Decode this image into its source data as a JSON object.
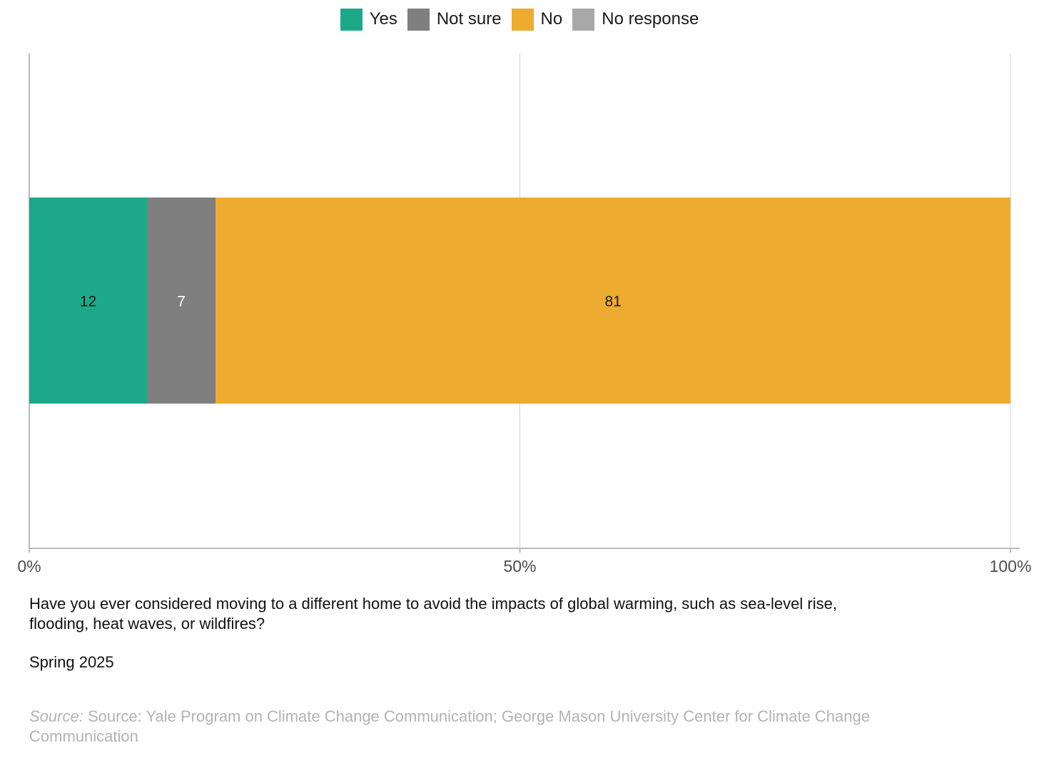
{
  "colors": {
    "yes": "#1ba98a",
    "not_sure": "#7f7f7f",
    "no": "#edab2f",
    "no_response": "#a8a8a8",
    "grid": "#d4d4d4",
    "axis": "#bbbbbb",
    "source_text": "#b3b3b3"
  },
  "legend": [
    {
      "label": "Yes",
      "color": "#1ba98a"
    },
    {
      "label": "Not sure",
      "color": "#7f7f7f"
    },
    {
      "label": "No",
      "color": "#edab2f"
    },
    {
      "label": "No response",
      "color": "#a8a8a8"
    }
  ],
  "chart_data": {
    "type": "bar",
    "orientation": "horizontal",
    "stacked": true,
    "categories": [
      ""
    ],
    "series": [
      {
        "name": "Yes",
        "values": [
          12
        ],
        "color": "#1ba98a",
        "label_color": "#1a1a1a"
      },
      {
        "name": "Not sure",
        "values": [
          7
        ],
        "color": "#7f7f7f",
        "label_color": "#ffffff"
      },
      {
        "name": "No",
        "values": [
          81
        ],
        "color": "#edab2f",
        "label_color": "#1a1a1a"
      },
      {
        "name": "No response",
        "values": [
          0
        ],
        "color": "#a8a8a8",
        "label_color": "#1a1a1a"
      }
    ],
    "xlim": [
      0,
      100
    ],
    "xticks": [
      0,
      50,
      100
    ],
    "xtick_labels": [
      "0%",
      "50%",
      "100%"
    ],
    "grid": true,
    "legend_position": "top"
  },
  "question": "Have you ever considered moving to a different home to avoid the impacts of global warming, such as sea-level rise, flooding, heat waves, or wildfires?",
  "period": "Spring 2025",
  "source": {
    "prefix": "Source:",
    "text": " Source: Yale Program on Climate Change Communication; George Mason University Center for Climate Change Communication"
  }
}
